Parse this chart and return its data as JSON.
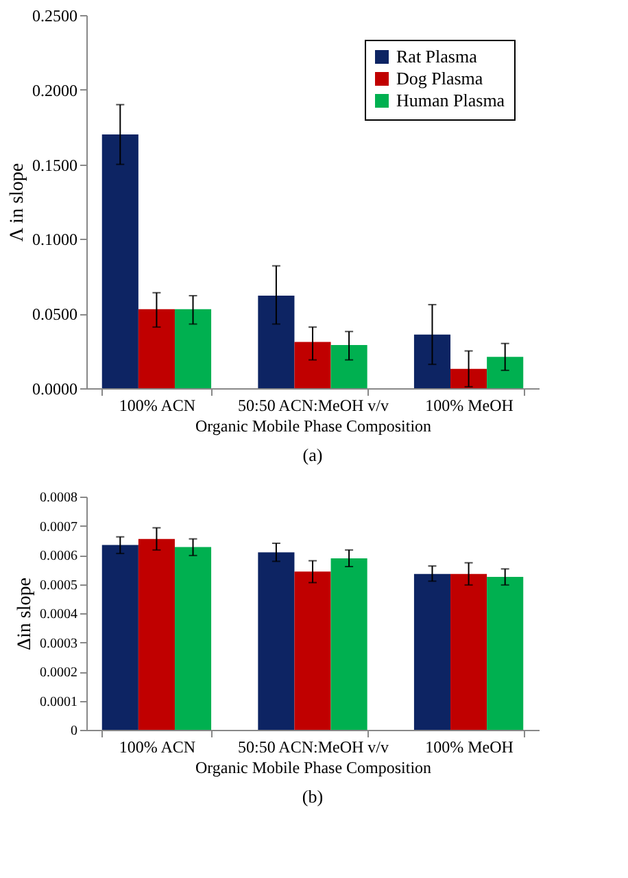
{
  "chart_data": [
    {
      "type": "bar",
      "ylabel": "Λ in slope",
      "xlabel": "Organic Mobile Phase Composition",
      "annotations": [
        "(a)"
      ],
      "categories": [
        "100% ACN",
        "50:50 ACN:MeOH v/v",
        "100% MeOH"
      ],
      "ylim": [
        0,
        0.25
      ],
      "yticks": [
        {
          "value": 0,
          "label": "0.0000"
        },
        {
          "value": 0.05,
          "label": "0.0500"
        },
        {
          "value": 0.1,
          "label": "0.1000"
        },
        {
          "value": 0.15,
          "label": "0.1500"
        },
        {
          "value": 0.2,
          "label": "0.2000"
        },
        {
          "value": 0.25,
          "label": "0.2500"
        }
      ],
      "grid": false,
      "legend": "top right",
      "series": [
        {
          "name": "Rat Plasma",
          "color": "#0d2463",
          "values": [
            0.17,
            0.062,
            0.036
          ],
          "errors": [
            [
              0.15,
              0.19
            ],
            [
              0.043,
              0.082
            ],
            [
              0.016,
              0.056
            ]
          ]
        },
        {
          "name": "Dog Plasma",
          "color": "#c00000",
          "values": [
            0.053,
            0.031,
            0.013
          ],
          "errors": [
            [
              0.041,
              0.064
            ],
            [
              0.019,
              0.041
            ],
            [
              0.001,
              0.025
            ]
          ]
        },
        {
          "name": "Human Plasma",
          "color": "#00b050",
          "values": [
            0.053,
            0.029,
            0.021
          ],
          "errors": [
            [
              0.043,
              0.062
            ],
            [
              0.019,
              0.038
            ],
            [
              0.012,
              0.03
            ]
          ]
        }
      ]
    },
    {
      "type": "bar",
      "ylabel": "Δin slope",
      "xlabel": "Organic Mobile Phase Composition",
      "annotations": [
        "(b)"
      ],
      "categories": [
        "100% ACN",
        "50:50 ACN:MeOH v/v",
        "100% MeOH"
      ],
      "ylim": [
        0,
        0.0008
      ],
      "yticks": [
        0,
        0.0001,
        0.0002,
        0.0003,
        0.0004,
        0.0005,
        0.0006,
        0.0007,
        0.0008
      ],
      "grid": false,
      "legend": false,
      "series": [
        {
          "color": "#0d2463",
          "values": [
            0.000634,
            0.000609,
            0.000535
          ],
          "errors": [
            [
              0.000605,
              0.000662
            ],
            [
              0.000578,
              0.00064
            ],
            [
              0.00051,
              0.000562
            ]
          ]
        },
        {
          "color": "#c00000",
          "values": [
            0.000655,
            0.000543,
            0.000535
          ],
          "errors": [
            [
              0.000617,
              0.000693
            ],
            [
              0.000505,
              0.00058
            ],
            [
              0.000497,
              0.000573
            ]
          ]
        },
        {
          "color": "#00b050",
          "values": [
            0.000627,
            0.000588,
            0.000525
          ],
          "errors": [
            [
              0.000598,
              0.000655
            ],
            [
              0.00056,
              0.000617
            ],
            [
              0.000497,
              0.000552
            ]
          ]
        }
      ]
    }
  ]
}
